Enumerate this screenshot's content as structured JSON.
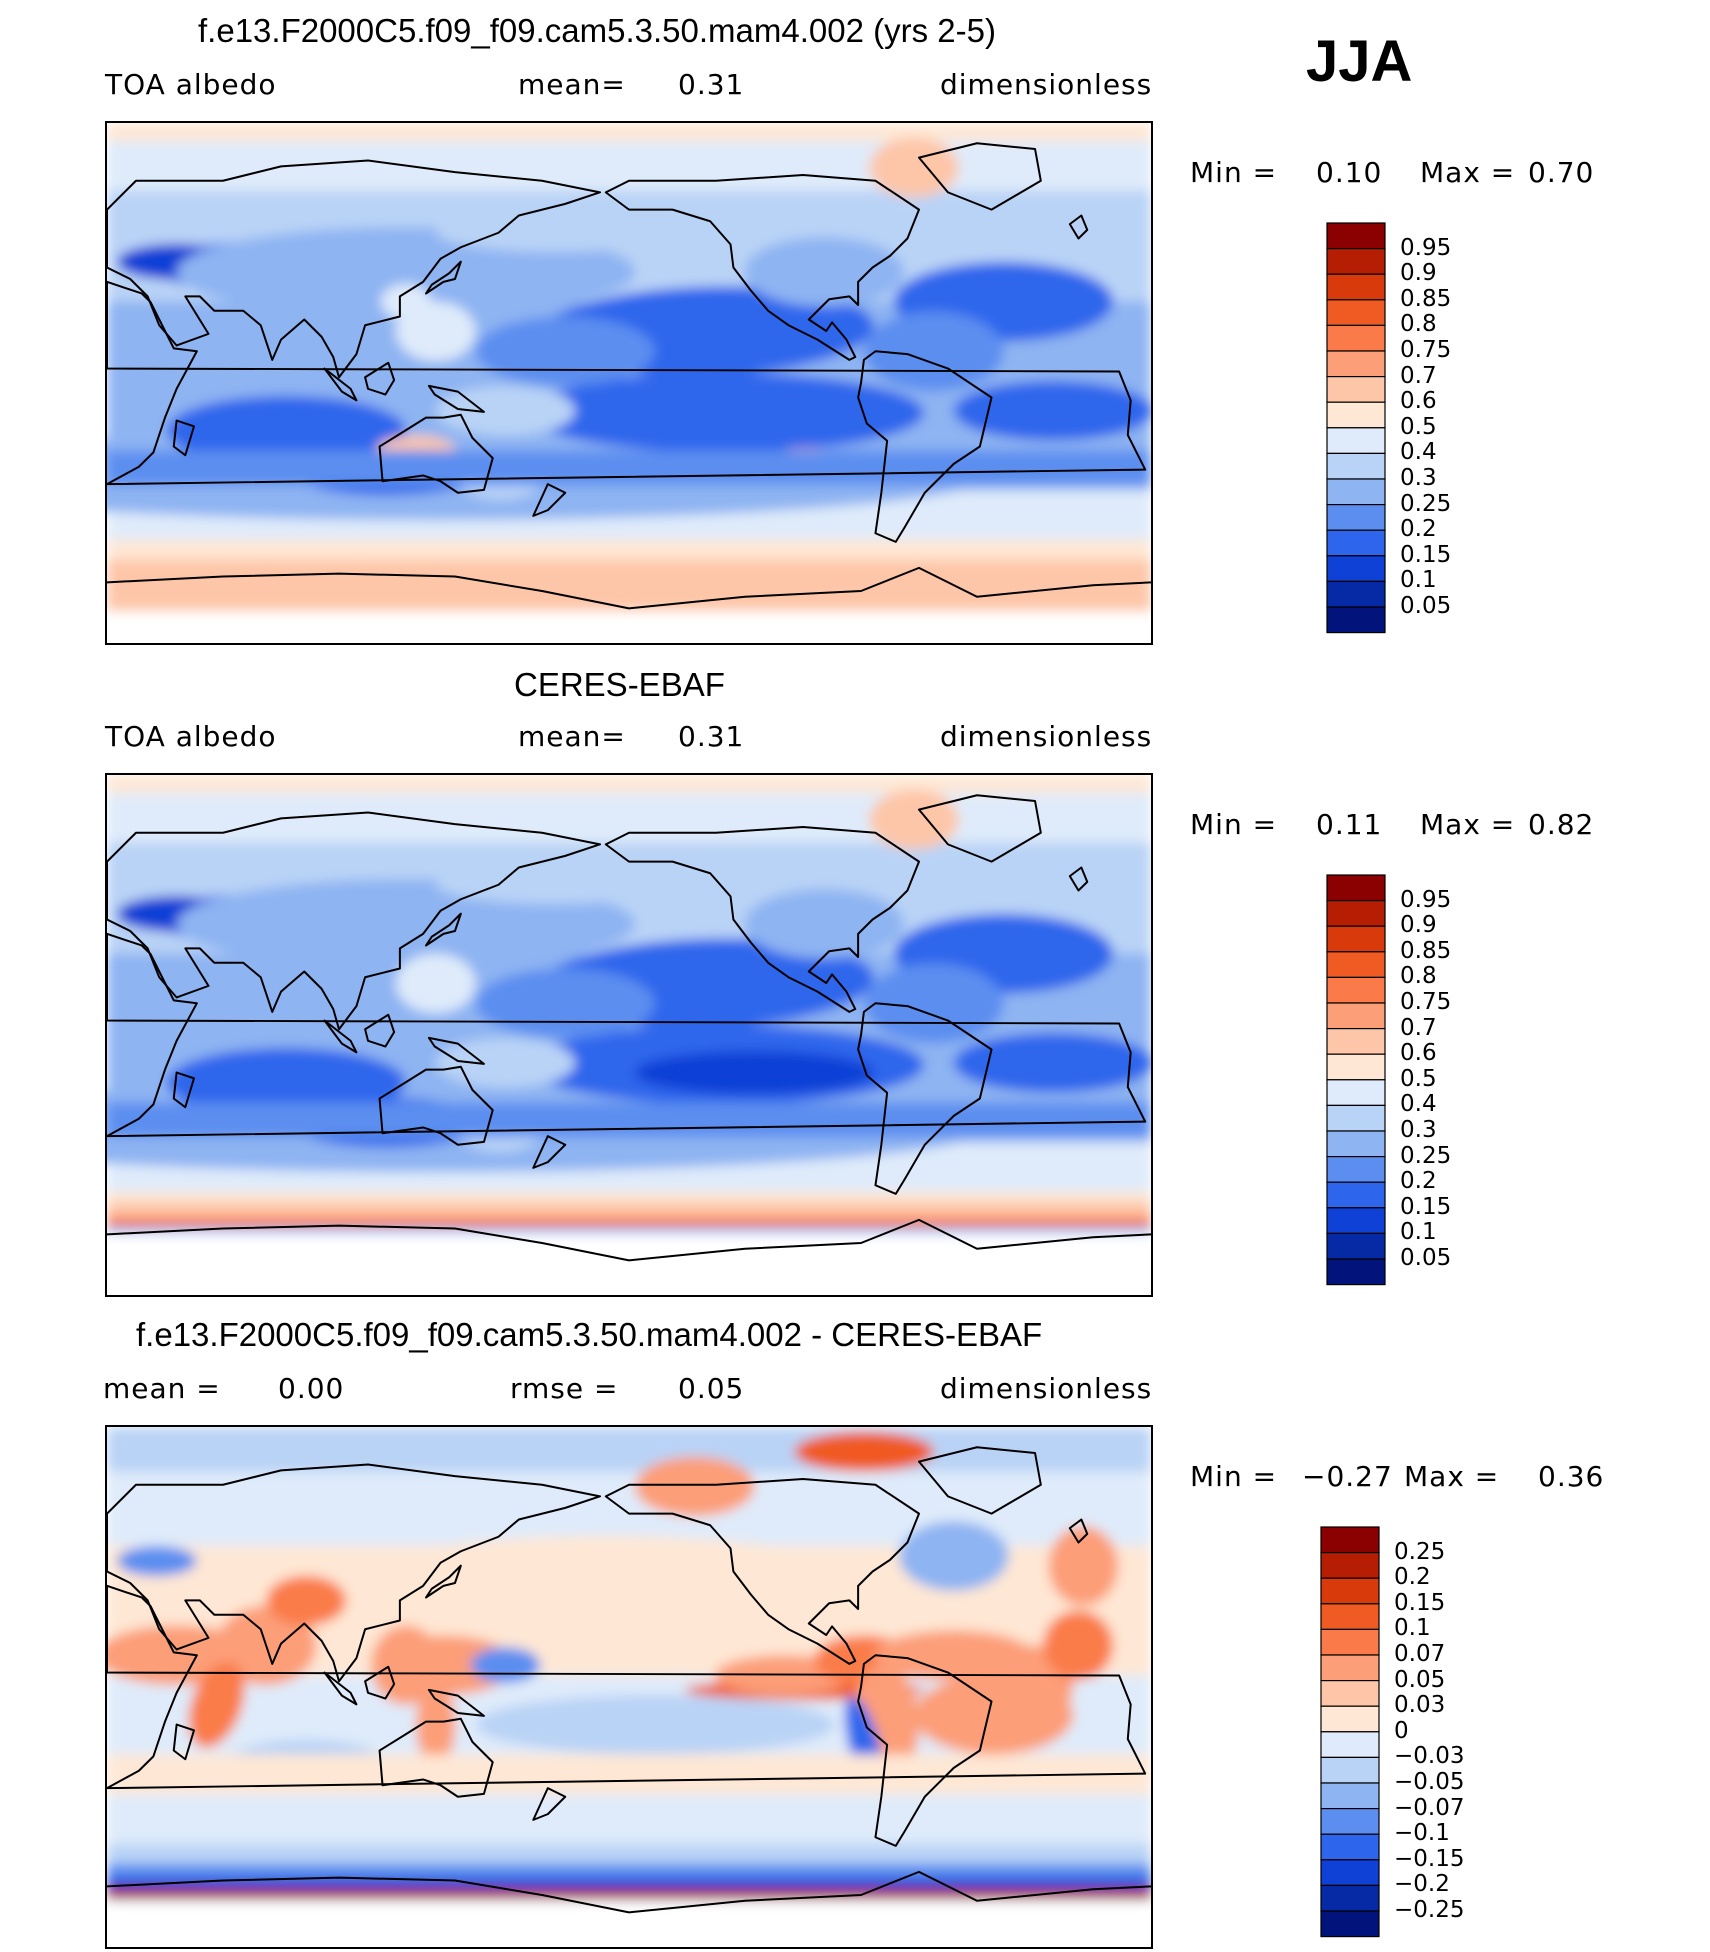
{
  "season": "JJA",
  "panels": [
    {
      "id": "model",
      "title": "f.e13.F2000C5.f09_f09.cam5.3.50.mam4.002 (yrs 2-5)",
      "left_label": "TOA  albedo",
      "mid_label": "mean=",
      "mid_value": "0.31",
      "right_label": "dimensionless",
      "min_label": "Min  =",
      "min_value": "0.10",
      "max_label": "Max  =",
      "max_value": "0.70",
      "colorbar": {
        "labels": [
          "0.95",
          "0.9",
          "0.85",
          "0.8",
          "0.75",
          "0.7",
          "0.6",
          "0.5",
          "0.4",
          "0.3",
          "0.25",
          "0.2",
          "0.15",
          "0.1",
          "0.05"
        ],
        "colors": [
          "#8b0000",
          "#b51e03",
          "#d93a0b",
          "#f05a23",
          "#fa7b49",
          "#fc9e78",
          "#fdc6a8",
          "#fee7d4",
          "#dfebfa",
          "#b9d3f6",
          "#8eb4f2",
          "#5c8ef0",
          "#2d66ec",
          "#0f41d6",
          "#0629a6",
          "#02137c"
        ]
      }
    },
    {
      "id": "obs",
      "title": "CERES-EBAF",
      "left_label": "TOA  albedo",
      "mid_label": "mean=",
      "mid_value": "0.31",
      "right_label": "dimensionless",
      "min_label": "Min  =",
      "min_value": "0.11",
      "max_label": "Max  =",
      "max_value": "0.82",
      "colorbar": {
        "labels": [
          "0.95",
          "0.9",
          "0.85",
          "0.8",
          "0.75",
          "0.7",
          "0.6",
          "0.5",
          "0.4",
          "0.3",
          "0.25",
          "0.2",
          "0.15",
          "0.1",
          "0.05"
        ],
        "colors": [
          "#8b0000",
          "#b51e03",
          "#d93a0b",
          "#f05a23",
          "#fa7b49",
          "#fc9e78",
          "#fdc6a8",
          "#fee7d4",
          "#dfebfa",
          "#b9d3f6",
          "#8eb4f2",
          "#5c8ef0",
          "#2d66ec",
          "#0f41d6",
          "#0629a6",
          "#02137c"
        ]
      }
    },
    {
      "id": "diff",
      "title": "f.e13.F2000C5.f09_f09.cam5.3.50.mam4.002 - CERES-EBAF",
      "left_label": "mean  =",
      "left_value": "0.00",
      "mid_label": "rmse  =",
      "mid_value": "0.05",
      "right_label": "dimensionless",
      "min_label": "Min  =",
      "min_value": "−0.27",
      "max_label": "Max  =",
      "max_value": "0.36",
      "colorbar": {
        "labels": [
          "0.25",
          "0.2",
          "0.15",
          "0.1",
          "0.07",
          "0.05",
          "0.03",
          "0",
          "−0.03",
          "−0.05",
          "−0.07",
          "−0.1",
          "−0.15",
          "−0.2",
          "−0.25"
        ],
        "colors": [
          "#8b0000",
          "#b51e03",
          "#d93a0b",
          "#f05a23",
          "#fa7b49",
          "#fc9e78",
          "#fdc6a8",
          "#fee7d4",
          "#dfebfa",
          "#b9d3f6",
          "#8eb4f2",
          "#5c8ef0",
          "#2d66ec",
          "#0f41d6",
          "#0629a6",
          "#02137c"
        ]
      }
    }
  ],
  "chart_data": [
    {
      "type": "heatmap",
      "title": "f.e13.F2000C5.f09_f09.cam5.3.50.mam4.002 (yrs 2-5)",
      "variable": "TOA  albedo",
      "units": "dimensionless",
      "mean": 0.31,
      "min": 0.1,
      "max": 0.7,
      "contour_levels": [
        0.05,
        0.1,
        0.15,
        0.2,
        0.25,
        0.3,
        0.4,
        0.5,
        0.6,
        0.7,
        0.75,
        0.8,
        0.85,
        0.9,
        0.95
      ]
    },
    {
      "type": "heatmap",
      "title": "CERES-EBAF",
      "variable": "TOA  albedo",
      "units": "dimensionless",
      "mean": 0.31,
      "min": 0.11,
      "max": 0.82,
      "contour_levels": [
        0.05,
        0.1,
        0.15,
        0.2,
        0.25,
        0.3,
        0.4,
        0.5,
        0.6,
        0.7,
        0.75,
        0.8,
        0.85,
        0.9,
        0.95
      ]
    },
    {
      "type": "heatmap",
      "title": "f.e13.F2000C5.f09_f09.cam5.3.50.mam4.002 - CERES-EBAF",
      "units": "dimensionless",
      "mean": 0.0,
      "rmse": 0.05,
      "min": -0.27,
      "max": 0.36,
      "contour_levels": [
        -0.25,
        -0.2,
        -0.15,
        -0.1,
        -0.07,
        -0.05,
        -0.03,
        0,
        0.03,
        0.05,
        0.07,
        0.1,
        0.15,
        0.2,
        0.25
      ]
    }
  ]
}
